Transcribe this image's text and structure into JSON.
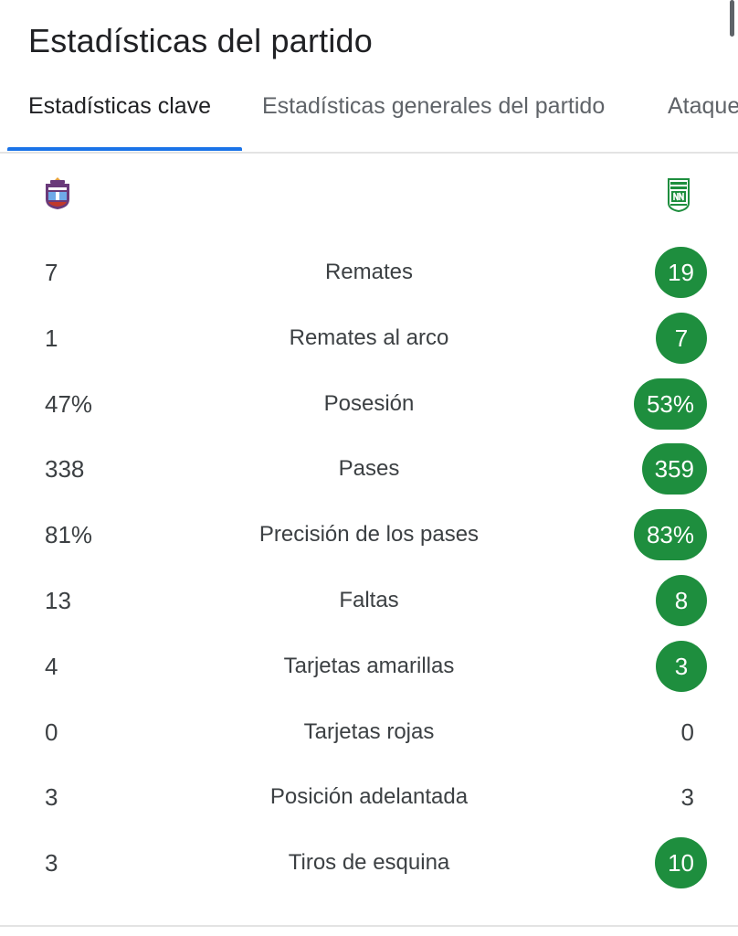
{
  "title": "Estadísticas del partido",
  "tabs": [
    {
      "label": "Estadísticas clave",
      "active": true
    },
    {
      "label": "Estadísticas generales del partido",
      "active": false
    },
    {
      "label": "Ataque",
      "active": false
    }
  ],
  "teams": {
    "home_logo": "home-team-crest-icon",
    "away_logo": "away-team-crest-icon",
    "winner_highlight_color": "#1e8e3e"
  },
  "stats": [
    {
      "label": "Remates",
      "home": "7",
      "away": "19",
      "away_highlight": true
    },
    {
      "label": "Remates al arco",
      "home": "1",
      "away": "7",
      "away_highlight": true
    },
    {
      "label": "Posesión",
      "home": "47%",
      "away": "53%",
      "away_highlight": true
    },
    {
      "label": "Pases",
      "home": "338",
      "away": "359",
      "away_highlight": true
    },
    {
      "label": "Precisión de los pases",
      "home": "81%",
      "away": "83%",
      "away_highlight": true
    },
    {
      "label": "Faltas",
      "home": "13",
      "away": "8",
      "away_highlight": true
    },
    {
      "label": "Tarjetas amarillas",
      "home": "4",
      "away": "3",
      "away_highlight": true
    },
    {
      "label": "Tarjetas rojas",
      "home": "0",
      "away": "0",
      "away_highlight": false
    },
    {
      "label": "Posición adelantada",
      "home": "3",
      "away": "3",
      "away_highlight": false
    },
    {
      "label": "Tiros de esquina",
      "home": "3",
      "away": "10",
      "away_highlight": true
    }
  ]
}
